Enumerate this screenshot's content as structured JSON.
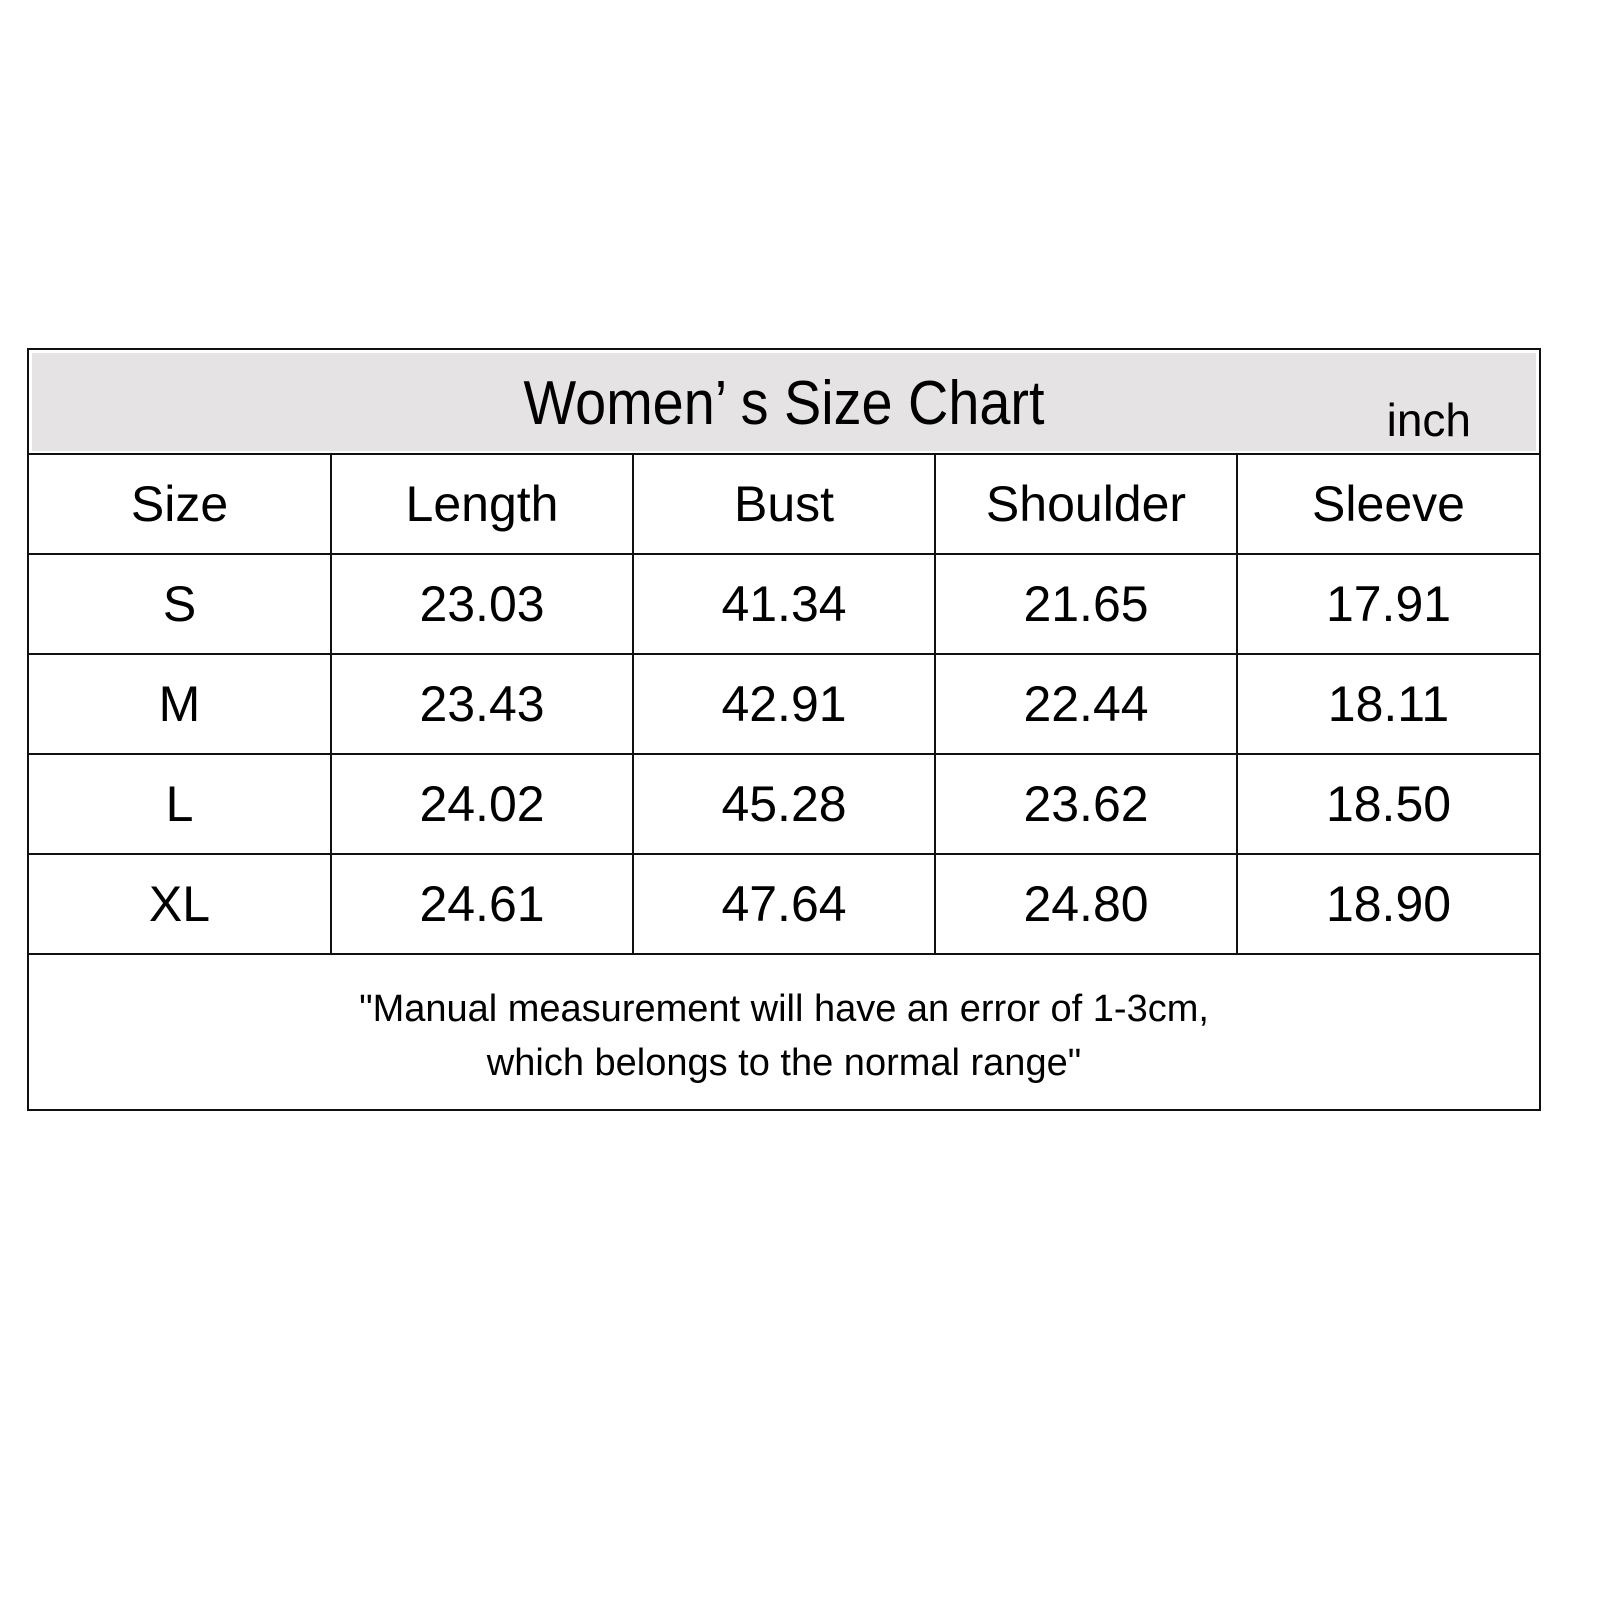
{
  "title": "Women’  s Size Chart",
  "unit": "inch",
  "columns": [
    "Size",
    "Length",
    "Bust",
    "Shoulder",
    "Sleeve"
  ],
  "rows": [
    [
      "S",
      "23.03",
      "41.34",
      "21.65",
      "17.91"
    ],
    [
      "M",
      "23.43",
      "42.91",
      "22.44",
      "18.11"
    ],
    [
      "L",
      "24.02",
      "45.28",
      "23.62",
      "18.50"
    ],
    [
      "XL",
      "24.61",
      "47.64",
      "24.80",
      "18.90"
    ]
  ],
  "note": {
    "line1": "\"Manual measurement will have an error of 1-3cm,",
    "line2": "which belongs to the normal range\""
  },
  "colors": {
    "header_band": "#e5e3e4",
    "border": "#111111"
  }
}
